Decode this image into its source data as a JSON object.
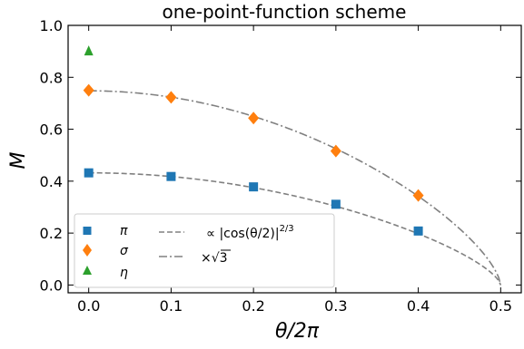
{
  "chart_data": {
    "type": "scatter",
    "title": "one-point-function scheme",
    "xlabel": "θ/2π",
    "ylabel": "M",
    "xlim": [
      -0.025,
      0.525
    ],
    "ylim": [
      -0.03,
      1.0
    ],
    "x_ticks": [
      "0.0",
      "0.1",
      "0.2",
      "0.3",
      "0.4",
      "0.5"
    ],
    "y_ticks": [
      "0.0",
      "0.2",
      "0.4",
      "0.6",
      "0.8",
      "1.0"
    ],
    "grid": false,
    "legend_position": "bottom-left",
    "series": [
      {
        "name": "π",
        "marker": "square",
        "color": "#1f77b4",
        "x": [
          0.0,
          0.1,
          0.2,
          0.3,
          0.4
        ],
        "y": [
          0.432,
          0.418,
          0.378,
          0.311,
          0.208
        ]
      },
      {
        "name": "σ",
        "marker": "diamond",
        "color": "#ff7f0e",
        "x": [
          0.0,
          0.1,
          0.2,
          0.3,
          0.4
        ],
        "y": [
          0.75,
          0.723,
          0.643,
          0.516,
          0.345
        ]
      },
      {
        "name": "η",
        "marker": "triangle",
        "color": "#2ca02c",
        "x": [
          0.0
        ],
        "y": [
          0.902
        ]
      }
    ],
    "curves": [
      {
        "name": "∝ |cos(θ/2)|",
        "exponent": "2/3",
        "style": "dashed",
        "color": "#808080",
        "amplitude": 0.432
      },
      {
        "name": "×√3",
        "style": "dashdot",
        "color": "#808080",
        "amplitude": 0.748
      }
    ]
  }
}
